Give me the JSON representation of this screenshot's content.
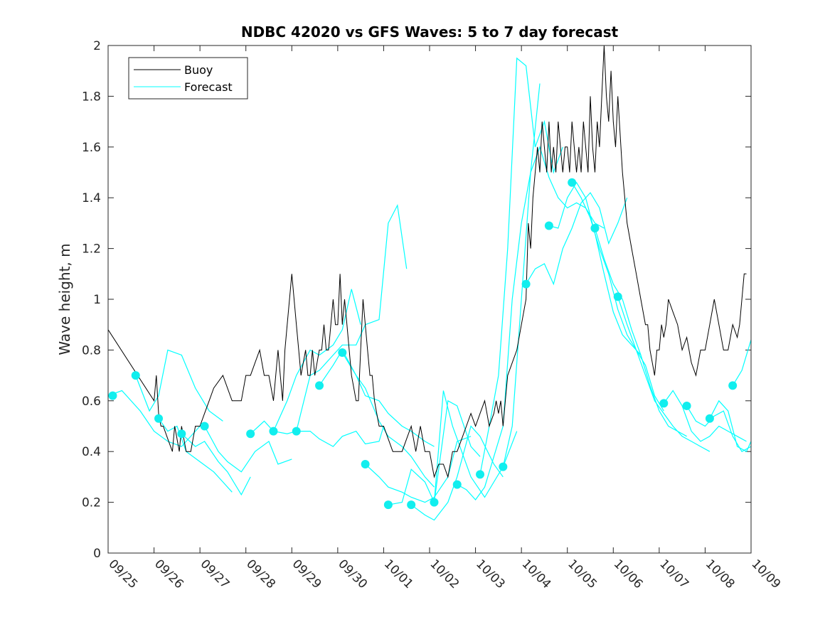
{
  "chart_data": {
    "type": "line",
    "title": "NDBC 42020 vs GFS Waves: 5 to 7 day forecast",
    "xlabel": "",
    "ylabel": "Wave height, m",
    "ylim": [
      0,
      2
    ],
    "xlim": [
      0,
      14
    ],
    "yticks": [
      0,
      0.2,
      0.4,
      0.6,
      0.8,
      1,
      1.2,
      1.4,
      1.6,
      1.8,
      2
    ],
    "ytick_labels": [
      "0",
      "0.2",
      "0.4",
      "0.6",
      "0.8",
      "1",
      "1.2",
      "1.4",
      "1.6",
      "1.8",
      "2"
    ],
    "xticks": [
      0,
      1,
      2,
      3,
      4,
      5,
      6,
      7,
      8,
      9,
      10,
      11,
      12,
      13,
      14
    ],
    "xtick_labels": [
      "09/25",
      "09/26",
      "09/27",
      "09/28",
      "09/29",
      "09/30",
      "10/01",
      "10/02",
      "10/03",
      "10/04",
      "10/05",
      "10/06",
      "10/07",
      "10/08",
      "10/09"
    ],
    "legend": {
      "position": "top-left",
      "entries": [
        "Buoy",
        "Forecast"
      ]
    },
    "colors": {
      "buoy": "#000000",
      "forecast": "#00FFFF",
      "dot": "#11EEEE"
    },
    "buoy": {
      "name": "Buoy",
      "x": [
        0,
        1.0,
        1.05,
        1.1,
        1.15,
        1.2,
        1.3,
        1.4,
        1.45,
        1.5,
        1.55,
        1.6,
        1.65,
        1.7,
        1.8,
        1.9,
        2.0,
        2.1,
        2.2,
        2.3,
        2.5,
        2.7,
        2.9,
        3.0,
        3.1,
        3.2,
        3.3,
        3.4,
        3.5,
        3.6,
        3.7,
        3.75,
        3.8,
        3.85,
        3.9,
        4.0,
        4.1,
        4.15,
        4.2,
        4.25,
        4.3,
        4.35,
        4.4,
        4.45,
        4.5,
        4.55,
        4.6,
        4.65,
        4.7,
        4.75,
        4.8,
        4.85,
        4.9,
        4.95,
        5.0,
        5.05,
        5.1,
        5.15,
        5.2,
        5.25,
        5.3,
        5.35,
        5.4,
        5.45,
        5.5,
        5.55,
        5.6,
        5.65,
        5.7,
        5.75,
        5.8,
        5.9,
        6.0,
        6.1,
        6.2,
        6.3,
        6.4,
        6.5,
        6.6,
        6.7,
        6.8,
        6.9,
        7.0,
        7.05,
        7.1,
        7.2,
        7.3,
        7.4,
        7.5,
        7.6,
        7.7,
        7.8,
        7.9,
        8.0,
        8.1,
        8.2,
        8.3,
        8.4,
        8.45,
        8.5,
        8.55,
        8.6,
        8.65,
        8.7,
        8.8,
        8.9,
        9.0,
        9.1,
        9.15,
        9.2,
        9.25,
        9.3,
        9.35,
        9.4,
        9.45,
        9.5,
        9.55,
        9.6,
        9.65,
        9.7,
        9.75,
        9.8,
        9.85,
        9.9,
        9.95,
        10.0,
        10.05,
        10.1,
        10.15,
        10.2,
        10.25,
        10.3,
        10.35,
        10.4,
        10.45,
        10.5,
        10.55,
        10.6,
        10.65,
        10.7,
        10.75,
        10.8,
        10.85,
        10.9,
        10.95,
        11.0,
        11.05,
        11.1,
        11.2,
        11.3,
        11.4,
        11.5,
        11.6,
        11.7,
        11.75,
        11.8,
        11.85,
        11.9,
        11.95,
        12.0,
        12.05,
        12.1,
        12.15,
        12.2,
        12.3,
        12.4,
        12.5,
        12.6,
        12.7,
        12.8,
        12.9,
        13.0,
        13.1,
        13.2,
        13.3,
        13.4,
        13.5,
        13.6,
        13.7,
        13.75,
        13.8,
        13.85,
        13.9
      ],
      "y": [
        0.88,
        0.6,
        0.7,
        0.55,
        0.5,
        0.5,
        0.45,
        0.4,
        0.5,
        0.45,
        0.4,
        0.5,
        0.45,
        0.4,
        0.4,
        0.5,
        0.5,
        0.55,
        0.6,
        0.65,
        0.7,
        0.6,
        0.6,
        0.7,
        0.7,
        0.75,
        0.8,
        0.7,
        0.7,
        0.6,
        0.8,
        0.7,
        0.6,
        0.8,
        0.9,
        1.1,
        0.9,
        0.8,
        0.7,
        0.75,
        0.8,
        0.7,
        0.7,
        0.8,
        0.7,
        0.75,
        0.8,
        0.8,
        0.9,
        0.8,
        0.8,
        0.9,
        1.0,
        0.9,
        0.9,
        1.1,
        0.9,
        1.0,
        0.9,
        0.8,
        0.7,
        0.65,
        0.6,
        0.6,
        0.8,
        1.0,
        0.9,
        0.8,
        0.7,
        0.7,
        0.6,
        0.5,
        0.5,
        0.45,
        0.4,
        0.4,
        0.4,
        0.45,
        0.5,
        0.4,
        0.5,
        0.4,
        0.4,
        0.35,
        0.3,
        0.35,
        0.35,
        0.3,
        0.4,
        0.4,
        0.45,
        0.5,
        0.55,
        0.5,
        0.55,
        0.6,
        0.5,
        0.55,
        0.6,
        0.55,
        0.6,
        0.5,
        0.6,
        0.7,
        0.75,
        0.8,
        0.9,
        1.0,
        1.3,
        1.2,
        1.4,
        1.5,
        1.6,
        1.5,
        1.7,
        1.6,
        1.5,
        1.7,
        1.5,
        1.6,
        1.5,
        1.7,
        1.6,
        1.5,
        1.6,
        1.6,
        1.5,
        1.7,
        1.6,
        1.5,
        1.6,
        1.5,
        1.7,
        1.6,
        1.5,
        1.8,
        1.6,
        1.5,
        1.7,
        1.6,
        1.8,
        2.0,
        1.8,
        1.7,
        1.9,
        1.7,
        1.6,
        1.8,
        1.5,
        1.3,
        1.2,
        1.1,
        1.0,
        0.9,
        0.9,
        0.8,
        0.75,
        0.7,
        0.8,
        0.8,
        0.9,
        0.85,
        0.9,
        1.0,
        0.95,
        0.9,
        0.8,
        0.85,
        0.75,
        0.7,
        0.8,
        0.8,
        0.9,
        1.0,
        0.9,
        0.8,
        0.8,
        0.9,
        0.85,
        0.9,
        1.0,
        1.1,
        1.1
      ]
    },
    "forecast_series": [
      {
        "name": "Forecast",
        "x": [
          0,
          0.3,
          0.7,
          1.0,
          1.3,
          1.6,
          2.0
        ],
        "y": [
          0.62,
          0.64,
          0.56,
          0.48,
          0.44,
          0.42,
          0.5
        ]
      },
      {
        "name": "Forecast",
        "x": [
          0.6,
          0.9,
          1.1,
          1.3,
          1.6,
          1.9,
          2.2,
          2.5
        ],
        "y": [
          0.7,
          0.56,
          0.62,
          0.8,
          0.78,
          0.65,
          0.56,
          0.52
        ]
      },
      {
        "name": "Forecast",
        "x": [
          1.1,
          1.3,
          1.5,
          1.7,
          2.0,
          2.3,
          2.5,
          2.7
        ],
        "y": [
          0.53,
          0.48,
          0.5,
          0.4,
          0.36,
          0.32,
          0.28,
          0.24
        ]
      },
      {
        "name": "Forecast",
        "x": [
          1.6,
          1.9,
          2.1,
          2.4,
          2.6,
          2.9,
          3.1
        ],
        "y": [
          0.47,
          0.42,
          0.44,
          0.36,
          0.32,
          0.23,
          0.3
        ]
      },
      {
        "name": "Forecast",
        "x": [
          2.1,
          2.4,
          2.6,
          2.9,
          3.2,
          3.5,
          3.7,
          4.0
        ],
        "y": [
          0.5,
          0.4,
          0.36,
          0.32,
          0.4,
          0.44,
          0.35,
          0.37
        ]
      },
      {
        "name": "Forecast",
        "x": [
          3.1,
          3.4,
          3.6,
          3.9,
          4.1,
          4.4,
          4.6,
          4.9,
          5.1,
          5.4,
          5.6,
          5.9,
          6.0
        ],
        "y": [
          0.47,
          0.52,
          0.48,
          0.47,
          0.48,
          0.48,
          0.45,
          0.42,
          0.46,
          0.48,
          0.43,
          0.44,
          0.5
        ]
      },
      {
        "name": "Forecast",
        "x": [
          3.6,
          3.9,
          4.1,
          4.4,
          4.6,
          4.9,
          5.1,
          5.3,
          5.5
        ],
        "y": [
          0.48,
          0.6,
          0.7,
          0.8,
          0.78,
          0.82,
          0.88,
          1.04,
          0.9
        ]
      },
      {
        "name": "Forecast",
        "x": [
          4.1,
          4.4,
          4.6,
          4.9,
          5.1,
          5.4,
          5.6,
          5.9,
          6.1,
          6.3,
          6.5
        ],
        "y": [
          0.48,
          0.7,
          0.72,
          0.78,
          0.82,
          0.82,
          0.9,
          0.92,
          1.3,
          1.37,
          1.12
        ]
      },
      {
        "name": "Forecast",
        "x": [
          4.6,
          4.9,
          5.1,
          5.4,
          5.6,
          5.9,
          6.1,
          6.4,
          6.6,
          6.9,
          7.1
        ],
        "y": [
          0.66,
          0.74,
          0.8,
          0.7,
          0.62,
          0.6,
          0.55,
          0.5,
          0.48,
          0.44,
          0.42
        ]
      },
      {
        "name": "Forecast",
        "x": [
          5.1,
          5.4,
          5.6,
          5.9,
          6.1,
          6.4,
          6.6,
          6.9,
          7.1
        ],
        "y": [
          0.79,
          0.7,
          0.65,
          0.52,
          0.46,
          0.42,
          0.38,
          0.3,
          0.26
        ]
      },
      {
        "name": "Forecast",
        "x": [
          5.6,
          5.9,
          6.1,
          6.4,
          6.6,
          6.9,
          7.1,
          7.4,
          7.6,
          7.9
        ],
        "y": [
          0.35,
          0.3,
          0.26,
          0.24,
          0.22,
          0.2,
          0.22,
          0.3,
          0.44,
          0.46
        ]
      },
      {
        "name": "Forecast",
        "x": [
          6.1,
          6.4,
          6.6,
          6.9,
          7.1,
          7.4,
          7.6,
          7.9,
          8.1
        ],
        "y": [
          0.19,
          0.2,
          0.33,
          0.28,
          0.2,
          0.6,
          0.58,
          0.42,
          0.38
        ]
      },
      {
        "name": "Forecast",
        "x": [
          6.6,
          6.9,
          7.1,
          7.4,
          7.6,
          7.9,
          8.1,
          8.4,
          8.6
        ],
        "y": [
          0.19,
          0.15,
          0.13,
          0.2,
          0.3,
          0.5,
          0.46,
          0.35,
          0.3
        ]
      },
      {
        "name": "Forecast",
        "x": [
          7.1,
          7.3,
          7.5,
          7.7,
          7.9,
          8.2,
          8.4,
          8.6,
          8.9
        ],
        "y": [
          0.2,
          0.64,
          0.5,
          0.4,
          0.3,
          0.22,
          0.28,
          0.34,
          0.48
        ]
      },
      {
        "name": "Forecast",
        "x": [
          7.6,
          7.8,
          8.0,
          8.2,
          8.4,
          8.6,
          8.8,
          9.0,
          9.2,
          9.4
        ],
        "y": [
          0.27,
          0.25,
          0.21,
          0.26,
          0.38,
          0.5,
          1.0,
          1.3,
          1.5,
          1.85
        ]
      },
      {
        "name": "Forecast",
        "x": [
          8.1,
          8.3,
          8.5,
          8.7,
          8.9,
          9.1,
          9.3,
          9.5,
          9.7,
          9.9
        ],
        "y": [
          0.31,
          0.5,
          0.7,
          1.2,
          1.95,
          1.92,
          1.6,
          1.7,
          1.5,
          1.6
        ]
      },
      {
        "name": "Forecast",
        "x": [
          8.6,
          8.8,
          9.0,
          9.2,
          9.4,
          9.6,
          9.8,
          10.0,
          10.2,
          10.4,
          10.6,
          10.8
        ],
        "y": [
          0.34,
          0.5,
          1.0,
          1.5,
          1.6,
          1.48,
          1.4,
          1.36,
          1.38,
          1.36,
          1.3,
          1.28
        ]
      },
      {
        "name": "Forecast",
        "x": [
          9.1,
          9.3,
          9.5,
          9.7,
          9.9,
          10.1,
          10.3,
          10.5,
          10.7,
          10.9,
          11.1,
          11.3
        ],
        "y": [
          1.06,
          1.12,
          1.14,
          1.06,
          1.2,
          1.28,
          1.38,
          1.42,
          1.36,
          1.22,
          1.3,
          1.4
        ]
      },
      {
        "name": "Forecast",
        "x": [
          9.6,
          9.8,
          10.0,
          10.2,
          10.4,
          10.6,
          10.8,
          11.0,
          11.2,
          11.4,
          11.6
        ],
        "y": [
          1.29,
          1.28,
          1.4,
          1.46,
          1.4,
          1.26,
          1.1,
          0.95,
          0.86,
          0.82,
          0.78
        ]
      },
      {
        "name": "Forecast",
        "x": [
          10.1,
          10.3,
          10.5,
          10.7,
          10.9,
          11.1,
          11.3,
          11.5,
          11.7,
          11.9,
          12.1
        ],
        "y": [
          1.46,
          1.4,
          1.32,
          1.2,
          1.1,
          0.96,
          0.86,
          0.8,
          0.74,
          0.62,
          0.56
        ]
      },
      {
        "name": "Forecast",
        "x": [
          10.6,
          10.8,
          11.0,
          11.2,
          11.4,
          11.6,
          11.8,
          12.0,
          12.2,
          12.4,
          12.6
        ],
        "y": [
          1.28,
          1.16,
          1.06,
          1.0,
          0.88,
          0.78,
          0.66,
          0.56,
          0.5,
          0.48,
          0.46
        ]
      },
      {
        "name": "Forecast",
        "x": [
          11.1,
          11.3,
          11.5,
          11.7,
          11.9,
          12.1,
          12.3,
          12.5,
          12.7,
          12.9,
          13.1
        ],
        "y": [
          1.01,
          0.9,
          0.8,
          0.7,
          0.6,
          0.55,
          0.5,
          0.46,
          0.44,
          0.42,
          0.4
        ]
      },
      {
        "name": "Forecast",
        "x": [
          12.1,
          12.3,
          12.5,
          12.7,
          12.9,
          13.1,
          13.3,
          13.5,
          13.7,
          13.9
        ],
        "y": [
          0.59,
          0.64,
          0.58,
          0.48,
          0.44,
          0.46,
          0.5,
          0.48,
          0.46,
          0.44
        ]
      },
      {
        "name": "Forecast",
        "x": [
          12.6,
          12.8,
          13.0,
          13.2,
          13.4,
          13.6,
          13.8,
          14.0
        ],
        "y": [
          0.58,
          0.52,
          0.5,
          0.54,
          0.56,
          0.46,
          0.4,
          0.42
        ]
      },
      {
        "name": "Forecast",
        "x": [
          13.1,
          13.3,
          13.5,
          13.7,
          13.9,
          14.0
        ],
        "y": [
          0.53,
          0.6,
          0.56,
          0.42,
          0.4,
          0.44
        ]
      },
      {
        "name": "Forecast",
        "x": [
          13.6,
          13.8,
          14.0
        ],
        "y": [
          0.66,
          0.72,
          0.84
        ]
      }
    ],
    "forecast_points": {
      "x": [
        0.1,
        0.6,
        1.1,
        1.6,
        2.1,
        3.1,
        3.6,
        4.1,
        4.6,
        5.1,
        5.6,
        6.1,
        6.6,
        7.1,
        7.6,
        8.1,
        8.6,
        9.1,
        9.6,
        10.1,
        10.6,
        11.1,
        12.1,
        12.6,
        13.1,
        13.6
      ],
      "y": [
        0.62,
        0.7,
        0.53,
        0.47,
        0.5,
        0.47,
        0.48,
        0.48,
        0.66,
        0.79,
        0.35,
        0.19,
        0.19,
        0.2,
        0.27,
        0.31,
        0.34,
        1.06,
        1.29,
        1.46,
        1.28,
        1.01,
        0.59,
        0.58,
        0.53,
        0.66
      ]
    }
  }
}
